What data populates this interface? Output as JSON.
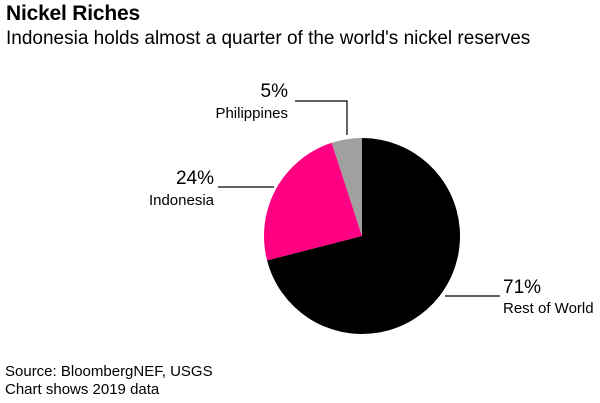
{
  "chart_data": {
    "type": "pie",
    "title": "Nickel Riches",
    "subtitle": "Indonesia holds almost a quarter of the world's nickel reserves",
    "slices": [
      {
        "label": "Rest of World",
        "value": 71,
        "value_label": "71%",
        "color": "#000000"
      },
      {
        "label": "Indonesia",
        "value": 24,
        "value_label": "24%",
        "color": "#ff0083"
      },
      {
        "label": "Philippines",
        "value": 5,
        "value_label": "5%",
        "color": "#a0a0a0"
      }
    ],
    "start": "12 o'clock, clockwise",
    "legend": "none (direct labels)"
  },
  "footer": {
    "source": "Source: BloombergNEF, USGS",
    "note": "Chart shows 2019 data"
  }
}
